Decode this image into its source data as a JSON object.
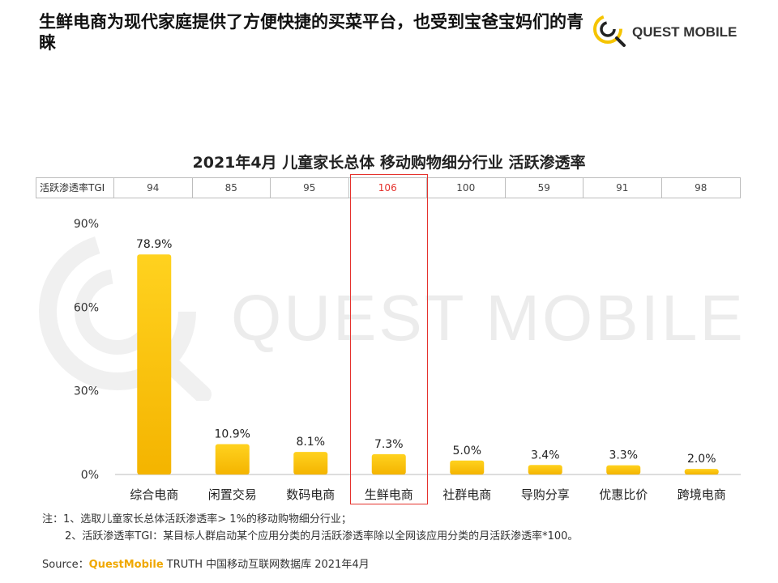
{
  "headline": "生鲜电商为现代家庭提供了方便快捷的买菜平台，也受到宝爸宝妈们的青睐",
  "logo": {
    "text": "QUEST MOBILE",
    "icon": "questmobile-logo-icon",
    "accent": "#f5c400"
  },
  "watermark": {
    "text": "QUEST MOBILE"
  },
  "tgi": {
    "label": "活跃渗透率TGI",
    "values": [
      "94",
      "85",
      "95",
      "106",
      "100",
      "59",
      "91",
      "98"
    ],
    "highlight_index": 3,
    "highlight_color": "#e5322d"
  },
  "chart_data": {
    "type": "bar",
    "title": "2021年4月 儿童家长总体 移动购物细分行业 活跃渗透率",
    "categories": [
      "综合电商",
      "闲置交易",
      "数码电商",
      "生鲜电商",
      "社群电商",
      "导购分享",
      "优惠比价",
      "跨境电商"
    ],
    "values": [
      78.9,
      10.9,
      8.1,
      7.3,
      5.0,
      3.4,
      3.3,
      2.0
    ],
    "value_labels": [
      "78.9%",
      "10.9%",
      "8.1%",
      "7.3%",
      "5.0%",
      "3.4%",
      "3.3%",
      "2.0%"
    ],
    "ylim": [
      0,
      90
    ],
    "yticks": [
      0,
      30,
      60,
      90
    ],
    "ytick_labels": [
      "0%",
      "30%",
      "60%",
      "90%"
    ],
    "bar_color_top": "#ffd21f",
    "bar_color_bottom": "#f4b400",
    "grid": false,
    "legend": "none",
    "highlight_category": "生鲜电商"
  },
  "notes": {
    "line1": "注：1、选取儿童家长总体活跃渗透率> 1%的移动购物细分行业；",
    "line2": "2、活跃渗透率TGI：某目标人群启动某个应用分类的月活跃渗透率除以全网该应用分类的月活跃渗透率*100。"
  },
  "source": {
    "prefix": "Source：",
    "brand": "QuestMobile",
    "rest": " TRUTH 中国移动互联网数据库 2021年4月"
  }
}
